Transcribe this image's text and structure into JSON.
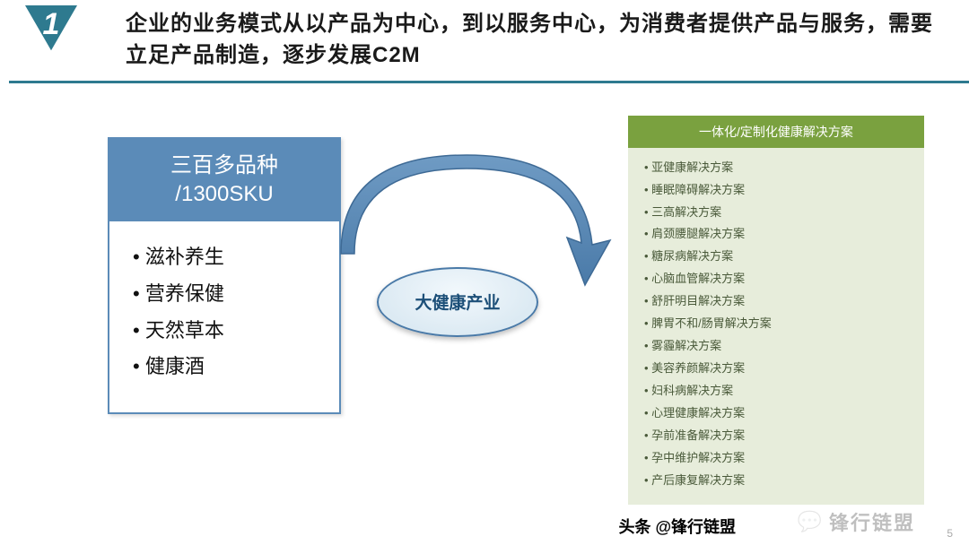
{
  "colors": {
    "accent": "#2e7a8f",
    "underline": "#2e7a8f",
    "left_header_bg": "#5b8bb8",
    "left_border": "#5b8bb8",
    "arrow_fill": "#5b8bb8",
    "arrow_stroke": "#3e6a95",
    "ellipse_fill": "#dceaf3",
    "ellipse_stroke": "#4a7aa8",
    "ellipse_text": "#1c4f78",
    "right_header_bg": "#7aa13f",
    "right_body_bg": "#e7eddb",
    "right_text": "#4a5a3a"
  },
  "header": {
    "badge_number": "1",
    "title": "企业的业务模式从以产品为中心，到以服务中心，为消费者提供产品与服务，需要立足产品制造，逐步发展C2M"
  },
  "left_box": {
    "header_line1": "三百多品种",
    "header_line2": "/1300SKU",
    "items": [
      "滋补养生",
      "营养保健",
      "天然草本",
      "健康酒"
    ]
  },
  "center": {
    "label": "大健康产业"
  },
  "right_box": {
    "header": "一体化/定制化健康解决方案",
    "items": [
      "亚健康解决方案",
      "睡眠障碍解决方案",
      "三高解决方案",
      "肩颈腰腿解决方案",
      "糖尿病解决方案",
      "心脑血管解决方案",
      "舒肝明目解决方案",
      "脾胃不和/肠胃解决方案",
      "雾霾解决方案",
      "美容养颜解决方案",
      "妇科病解决方案",
      "心理健康解决方案",
      "孕前准备解决方案",
      "孕中维护解决方案",
      "产后康复解决方案"
    ]
  },
  "footer": {
    "author": "头条 @锋行链盟",
    "logo_text": "锋行链盟",
    "page_num": "5"
  }
}
